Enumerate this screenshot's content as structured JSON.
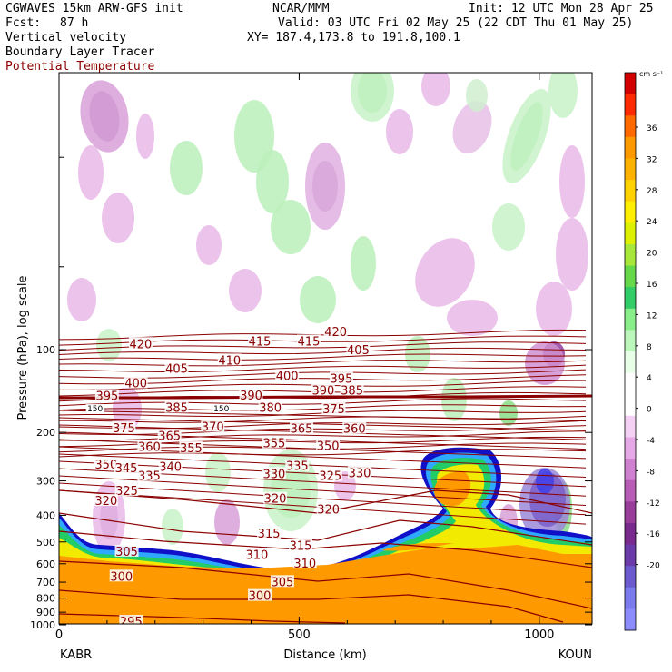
{
  "header": {
    "model": "CGWAVES 15km ARW-GFS init",
    "org": "NCAR/MMM",
    "init": "Init: 12 UTC Mon 28 Apr 25",
    "fcst_label": "Fcst:",
    "fcst_value": "87 h",
    "valid": "Valid: 03 UTC Fri 02 May 25 (22 CDT Thu 01 May 25)",
    "field1": "Vertical velocity",
    "xy": "XY= 187.4,173.8 to 191.8,100.1",
    "field2": "Boundary Layer Tracer",
    "field3": "Potential Temperature"
  },
  "chart_data": {
    "type": "heatmap",
    "xlabel": "Distance (km)",
    "ylabel": "Pressure (hPa), log scale",
    "x_ticks": [
      0,
      500,
      1000
    ],
    "xlim": [
      0,
      1110
    ],
    "y_ticks": [
      100,
      200,
      300,
      400,
      500,
      600,
      700,
      800,
      900,
      1000
    ],
    "y_scale": "log",
    "endpoints": {
      "left": "KABR",
      "right": "KOUN"
    },
    "colorbar": {
      "units": "cm s⁻¹",
      "labels": [
        "36",
        "32",
        "28",
        "24",
        "20",
        "16",
        "12",
        "8",
        "4",
        "0",
        "-4",
        "-8",
        "-12",
        "-16",
        "-20"
      ],
      "colors": [
        "#d30000",
        "#ff2a00",
        "#ff6a00",
        "#ff9900",
        "#ffb300",
        "#ffd100",
        "#ffee00",
        "#ddf000",
        "#a8e83c",
        "#66d94a",
        "#33cc66",
        "#88ee88",
        "#bbf7bb",
        "#e8ffe8",
        "#ffffff",
        "#ffffff",
        "#f5d0f5",
        "#e6a8e6",
        "#d080d0",
        "#b85cb8",
        "#9a3c9a",
        "#7a2a8e",
        "#6a3aaa",
        "#6a5acd",
        "#7b7bee",
        "#8c8cff"
      ]
    },
    "theta_labels": [
      {
        "t": "420",
        "x": 170,
        "p": 95
      },
      {
        "t": "415",
        "x": 418,
        "p": 93
      },
      {
        "t": "415",
        "x": 520,
        "p": 93
      },
      {
        "t": "420",
        "x": 576,
        "p": 86
      },
      {
        "t": "405",
        "x": 623,
        "p": 100
      },
      {
        "t": "410",
        "x": 355,
        "p": 109
      },
      {
        "t": "405",
        "x": 245,
        "p": 117
      },
      {
        "t": "400",
        "x": 160,
        "p": 132
      },
      {
        "t": "400",
        "x": 475,
        "p": 124
      },
      {
        "t": "395",
        "x": 588,
        "p": 127
      },
      {
        "t": "395",
        "x": 100,
        "p": 147
      },
      {
        "t": "390",
        "x": 400,
        "p": 146
      },
      {
        "t": "390",
        "x": 550,
        "p": 140
      },
      {
        "t": "385",
        "x": 245,
        "p": 162
      },
      {
        "t": "385",
        "x": 610,
        "p": 140
      },
      {
        "t": "380",
        "x": 440,
        "p": 162
      },
      {
        "t": "375",
        "x": 572,
        "p": 164
      },
      {
        "t": "375",
        "x": 135,
        "p": 192
      },
      {
        "t": "370",
        "x": 320,
        "p": 190
      },
      {
        "t": "365",
        "x": 230,
        "p": 205
      },
      {
        "t": "365",
        "x": 505,
        "p": 193
      },
      {
        "t": "360",
        "x": 188,
        "p": 225
      },
      {
        "t": "360",
        "x": 615,
        "p": 193
      },
      {
        "t": "355",
        "x": 275,
        "p": 227
      },
      {
        "t": "355",
        "x": 448,
        "p": 218
      },
      {
        "t": "350",
        "x": 560,
        "p": 223
      },
      {
        "t": "350",
        "x": 98,
        "p": 261
      },
      {
        "t": "345",
        "x": 140,
        "p": 269
      },
      {
        "t": "340",
        "x": 232,
        "p": 266
      },
      {
        "t": "335",
        "x": 188,
        "p": 287
      },
      {
        "t": "335",
        "x": 496,
        "p": 264
      },
      {
        "t": "330",
        "x": 448,
        "p": 282
      },
      {
        "t": "330",
        "x": 626,
        "p": 280
      },
      {
        "t": "325",
        "x": 141,
        "p": 325
      },
      {
        "t": "325",
        "x": 565,
        "p": 287
      },
      {
        "t": "320",
        "x": 98,
        "p": 353
      },
      {
        "t": "320",
        "x": 450,
        "p": 347
      },
      {
        "t": "320",
        "x": 561,
        "p": 379
      },
      {
        "t": "315",
        "x": 437,
        "p": 465
      },
      {
        "t": "315",
        "x": 503,
        "p": 515
      },
      {
        "t": "310",
        "x": 412,
        "p": 555
      },
      {
        "t": "310",
        "x": 512,
        "p": 597
      },
      {
        "t": "305",
        "x": 141,
        "p": 540
      },
      {
        "t": "305",
        "x": 465,
        "p": 696
      },
      {
        "t": "300",
        "x": 130,
        "p": 665
      },
      {
        "t": "300",
        "x": 418,
        "p": 782
      },
      {
        "t": "295",
        "x": 150,
        "p": 970
      }
    ],
    "tracer_labels": [
      {
        "t": "150",
        "x": 75,
        "p": 164
      },
      {
        "t": "150",
        "x": 338,
        "p": 164
      }
    ]
  }
}
